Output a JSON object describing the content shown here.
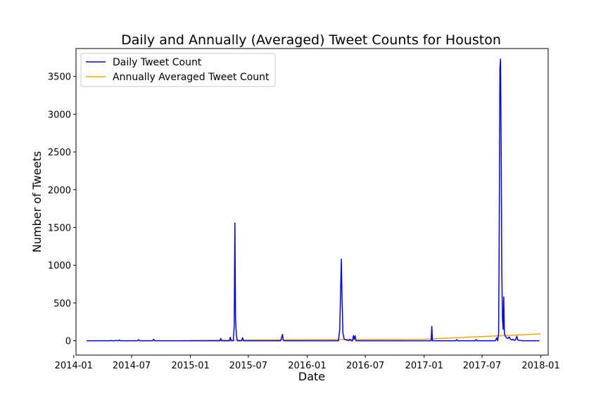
{
  "chart_data": {
    "type": "line",
    "title": "Daily and Annually (Averaged) Tweet Counts for Houston",
    "xlabel": "Date",
    "ylabel": "Number of Tweets",
    "x_type": "date",
    "xlim": [
      "2014-01-08",
      "2018-01-24"
    ],
    "ylim": [
      -190,
      3870
    ],
    "x_ticks": [
      "2014-01-01",
      "2014-07-01",
      "2015-01-01",
      "2015-07-01",
      "2016-01-01",
      "2016-07-01",
      "2017-01-01",
      "2017-07-01",
      "2018-01-01"
    ],
    "x_tick_labels": [
      "2014-01",
      "2014-07",
      "2015-01",
      "2015-07",
      "2016-01",
      "2016-07",
      "2017-01",
      "2017-07",
      "2018-01"
    ],
    "y_ticks": [
      0,
      500,
      1000,
      1500,
      2000,
      2500,
      3000,
      3500
    ],
    "y_tick_labels": [
      "0",
      "500",
      "1000",
      "1500",
      "2000",
      "2500",
      "3000",
      "3500"
    ],
    "grid": false,
    "legend_position": "top-left",
    "series": [
      {
        "name": "Daily Tweet Count",
        "color": "#0000ff",
        "points": [
          [
            "2014-02-10",
            0
          ],
          [
            "2014-04-25",
            0
          ],
          [
            "2014-04-28",
            4
          ],
          [
            "2014-05-01",
            0
          ],
          [
            "2014-05-10",
            0
          ],
          [
            "2014-05-13",
            5
          ],
          [
            "2014-05-16",
            0
          ],
          [
            "2014-05-20",
            0
          ],
          [
            "2014-05-23",
            10
          ],
          [
            "2014-05-26",
            0
          ],
          [
            "2014-07-20",
            0
          ],
          [
            "2014-07-23",
            14
          ],
          [
            "2014-07-26",
            0
          ],
          [
            "2014-09-05",
            0
          ],
          [
            "2014-09-08",
            20
          ],
          [
            "2014-09-11",
            0
          ],
          [
            "2015-04-03",
            0
          ],
          [
            "2015-04-06",
            30
          ],
          [
            "2015-04-08",
            0
          ],
          [
            "2015-05-03",
            0
          ],
          [
            "2015-05-06",
            45
          ],
          [
            "2015-05-08",
            0
          ],
          [
            "2015-05-15",
            0
          ],
          [
            "2015-05-18",
            200
          ],
          [
            "2015-05-20",
            1560
          ],
          [
            "2015-05-22",
            300
          ],
          [
            "2015-05-25",
            60
          ],
          [
            "2015-05-28",
            0
          ],
          [
            "2015-06-10",
            0
          ],
          [
            "2015-06-13",
            40
          ],
          [
            "2015-06-16",
            0
          ],
          [
            "2015-10-10",
            0
          ],
          [
            "2015-10-13",
            40
          ],
          [
            "2015-10-16",
            85
          ],
          [
            "2015-10-18",
            10
          ],
          [
            "2015-10-21",
            0
          ],
          [
            "2016-04-08",
            0
          ],
          [
            "2016-04-12",
            150
          ],
          [
            "2016-04-15",
            700
          ],
          [
            "2016-04-17",
            1080
          ],
          [
            "2016-04-19",
            600
          ],
          [
            "2016-04-22",
            100
          ],
          [
            "2016-04-26",
            20
          ],
          [
            "2016-05-10",
            0
          ],
          [
            "2016-05-14",
            20
          ],
          [
            "2016-05-18",
            0
          ],
          [
            "2016-05-22",
            0
          ],
          [
            "2016-05-25",
            70
          ],
          [
            "2016-05-27",
            20
          ],
          [
            "2016-05-30",
            65
          ],
          [
            "2016-06-02",
            0
          ],
          [
            "2017-01-23",
            0
          ],
          [
            "2017-01-25",
            190
          ],
          [
            "2017-01-27",
            0
          ],
          [
            "2017-04-10",
            0
          ],
          [
            "2017-04-13",
            15
          ],
          [
            "2017-04-16",
            0
          ],
          [
            "2017-06-10",
            0
          ],
          [
            "2017-06-13",
            15
          ],
          [
            "2017-06-16",
            0
          ],
          [
            "2017-08-12",
            0
          ],
          [
            "2017-08-16",
            40
          ],
          [
            "2017-08-19",
            0
          ],
          [
            "2017-08-22",
            100
          ],
          [
            "2017-08-24",
            1500
          ],
          [
            "2017-08-26",
            3600
          ],
          [
            "2017-08-28",
            3730
          ],
          [
            "2017-08-30",
            2500
          ],
          [
            "2017-09-01",
            900
          ],
          [
            "2017-09-03",
            300
          ],
          [
            "2017-09-05",
            150
          ],
          [
            "2017-09-07",
            580
          ],
          [
            "2017-09-09",
            100
          ],
          [
            "2017-09-12",
            60
          ],
          [
            "2017-09-16",
            40
          ],
          [
            "2017-09-20",
            30
          ],
          [
            "2017-09-24",
            50
          ],
          [
            "2017-09-28",
            20
          ],
          [
            "2017-10-02",
            10
          ],
          [
            "2017-10-06",
            20
          ],
          [
            "2017-10-10",
            5
          ],
          [
            "2017-10-14",
            10
          ],
          [
            "2017-10-18",
            60
          ],
          [
            "2017-10-21",
            10
          ],
          [
            "2017-10-25",
            5
          ],
          [
            "2017-11-05",
            0
          ],
          [
            "2017-12-28",
            0
          ]
        ]
      },
      {
        "name": "Annually Averaged Tweet Count",
        "color": "#ffa500",
        "points": [
          [
            "2015-01-01",
            3
          ],
          [
            "2016-01-01",
            15
          ],
          [
            "2017-01-01",
            20
          ],
          [
            "2017-12-31",
            90
          ]
        ]
      }
    ]
  }
}
